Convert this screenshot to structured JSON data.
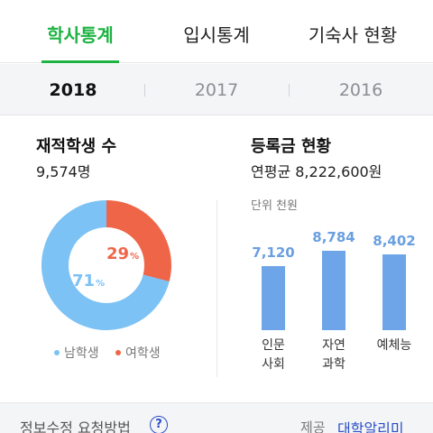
{
  "tabs": [
    {
      "label": "학사통계",
      "active": true
    },
    {
      "label": "입시통계",
      "active": false
    },
    {
      "label": "기숙사 현황",
      "active": false
    }
  ],
  "years": [
    {
      "label": "2018",
      "active": true
    },
    {
      "label": "2017",
      "active": false
    },
    {
      "label": "2016",
      "active": false
    }
  ],
  "students": {
    "title": "재적학생 수",
    "total": "9,574명",
    "female_pct": 29,
    "male_pct": 71,
    "female_text": "29",
    "male_text": "71",
    "pct_unit": "%",
    "legend": [
      {
        "label": "남학생",
        "color": "#7cc2f5"
      },
      {
        "label": "여학생",
        "color": "#ef6548"
      }
    ]
  },
  "tuition": {
    "title": "등록금 현황",
    "average": "연평균 8,222,600원",
    "unit": "단위 천원",
    "bars": [
      {
        "value": 7120,
        "value_text": "7,120",
        "label_line1": "인문",
        "label_line2": "사회"
      },
      {
        "value": 8784,
        "value_text": "8,784",
        "label_line1": "자연",
        "label_line2": "과학"
      },
      {
        "value": 8402,
        "value_text": "8,402",
        "label_line1": "예체능",
        "label_line2": ""
      }
    ],
    "color": "#6ea5e8"
  },
  "footer": {
    "link": "정보수정 요청방법",
    "help_icon": "?",
    "provided_by_label": "제공",
    "provider": "대학알리미"
  }
}
